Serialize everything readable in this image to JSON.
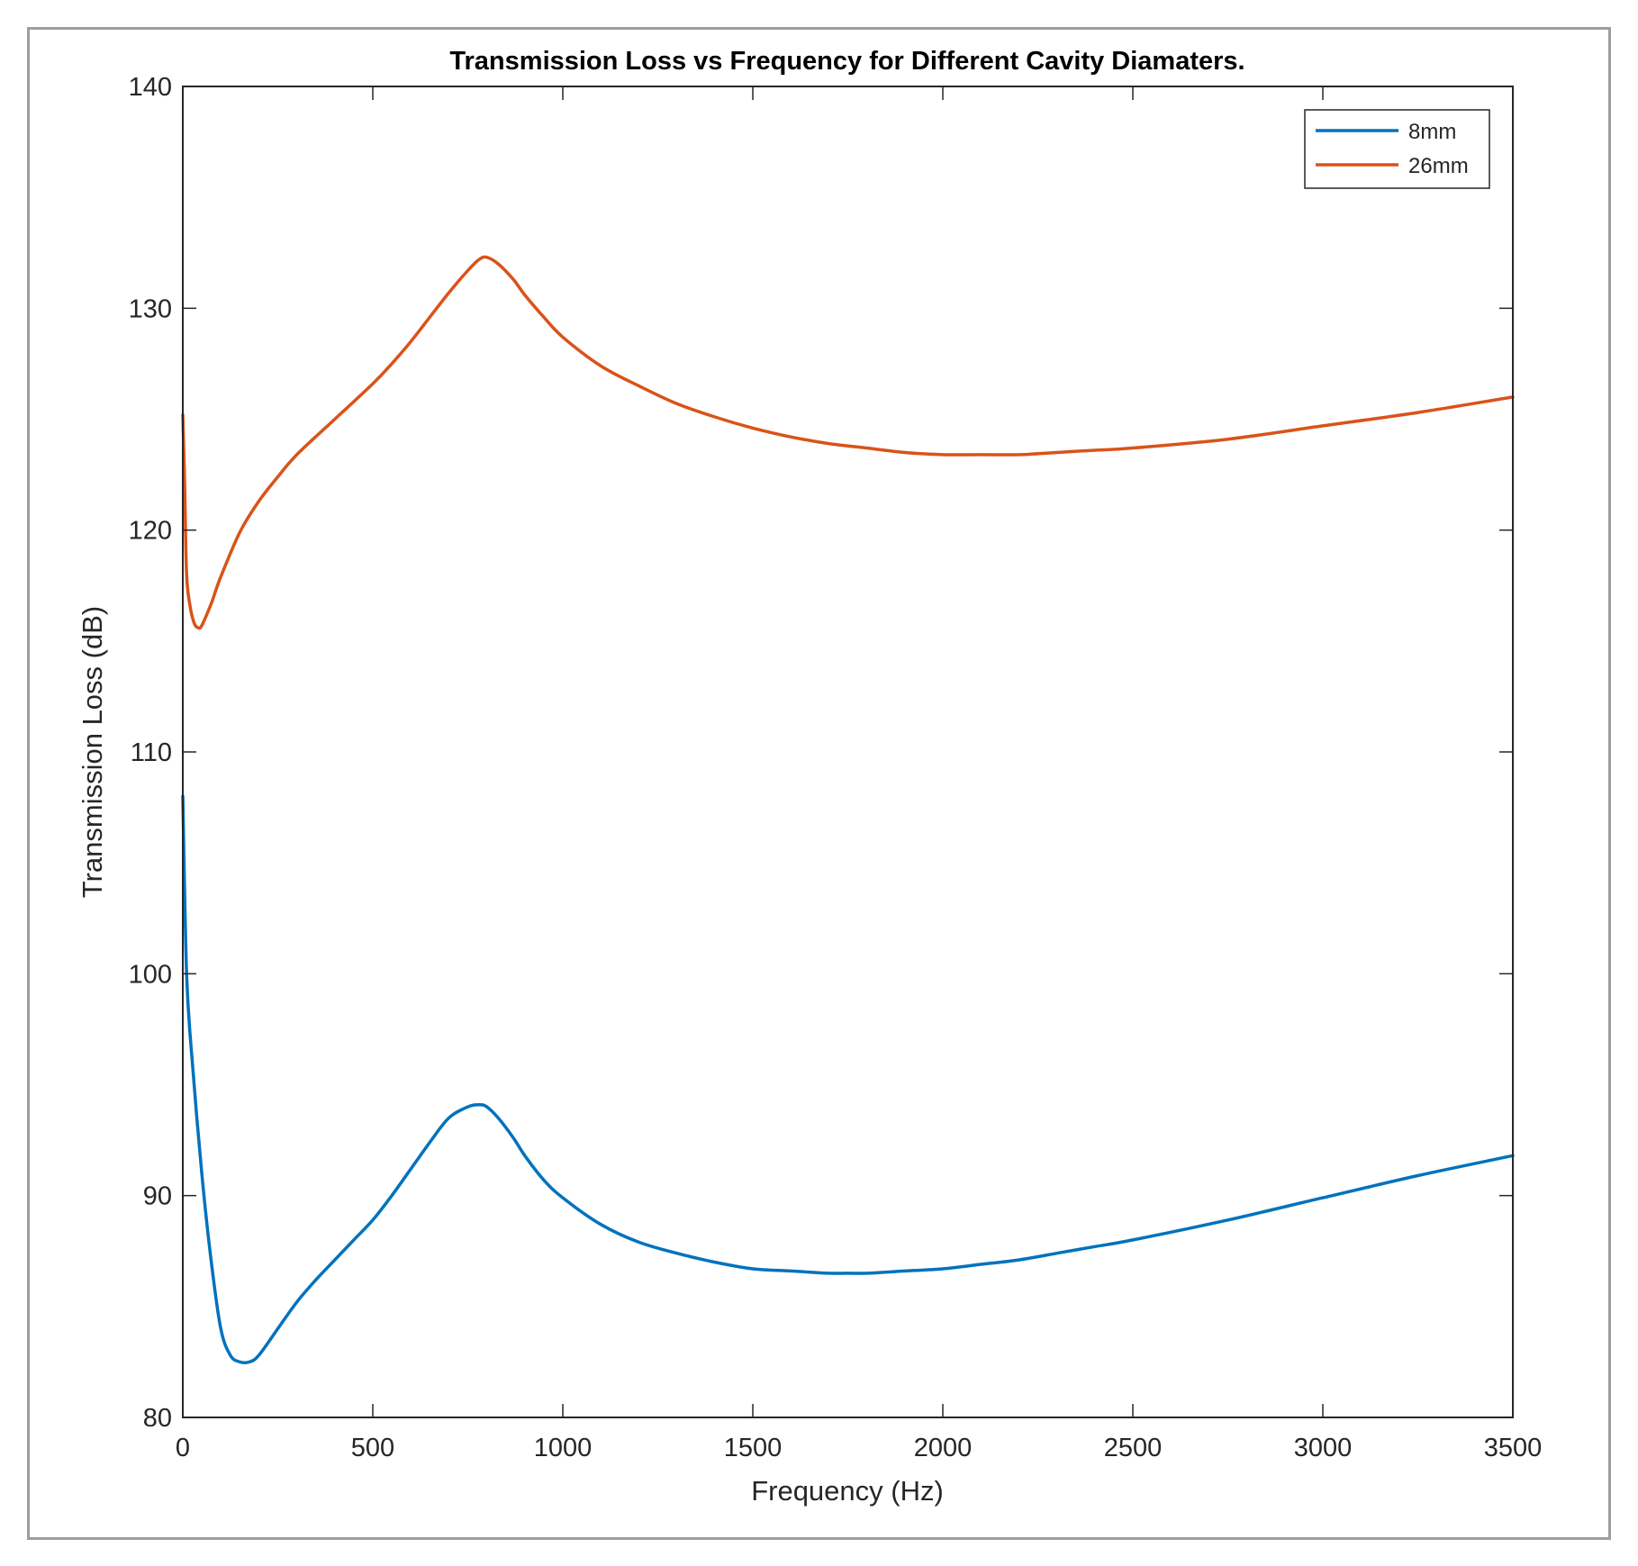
{
  "chart_data": {
    "type": "line",
    "title": "Transmission Loss vs Frequency for Different Cavity Diamaters.",
    "xlabel": "Frequency (Hz)",
    "ylabel": "Transmission Loss (dB)",
    "xlim": [
      0,
      3500
    ],
    "ylim": [
      80,
      140
    ],
    "xticks": [
      0,
      500,
      1000,
      1500,
      2000,
      2500,
      3000,
      3500
    ],
    "yticks": [
      80,
      90,
      100,
      110,
      120,
      130,
      140
    ],
    "legend_position": "top-right",
    "series": [
      {
        "name": "8mm",
        "color": "#0072BD",
        "x": [
          0,
          10,
          25,
          50,
          75,
          100,
          125,
          150,
          175,
          200,
          250,
          300,
          350,
          400,
          450,
          500,
          550,
          600,
          650,
          700,
          750,
          780,
          800,
          830,
          870,
          900,
          950,
          1000,
          1100,
          1200,
          1300,
          1400,
          1500,
          1600,
          1700,
          1750,
          1800,
          1900,
          2000,
          2100,
          2200,
          2300,
          2400,
          2500,
          2750,
          3000,
          3250,
          3500
        ],
        "values": [
          108,
          100,
          96,
          91,
          87,
          84,
          82.8,
          82.5,
          82.5,
          82.8,
          84,
          85.2,
          86.2,
          87.1,
          88,
          88.9,
          90,
          91.2,
          92.4,
          93.5,
          94,
          94.1,
          94,
          93.5,
          92.6,
          91.8,
          90.7,
          89.9,
          88.7,
          87.9,
          87.4,
          87,
          86.7,
          86.6,
          86.5,
          86.5,
          86.5,
          86.6,
          86.7,
          86.9,
          87.1,
          87.4,
          87.7,
          88,
          88.9,
          89.9,
          90.9,
          91.8
        ]
      },
      {
        "name": "26mm",
        "color": "#D95319",
        "x": [
          0,
          5,
          10,
          20,
          30,
          40,
          50,
          75,
          100,
          150,
          200,
          250,
          300,
          400,
          500,
          550,
          600,
          650,
          700,
          750,
          780,
          800,
          830,
          870,
          900,
          950,
          1000,
          1100,
          1200,
          1300,
          1400,
          1500,
          1600,
          1700,
          1800,
          1900,
          2000,
          2100,
          2200,
          2300,
          2400,
          2500,
          2750,
          3000,
          3250,
          3500
        ],
        "values": [
          125.2,
          122,
          118,
          116.5,
          115.8,
          115.6,
          115.7,
          116.7,
          117.9,
          119.9,
          121.3,
          122.4,
          123.4,
          125,
          126.6,
          127.5,
          128.5,
          129.6,
          130.7,
          131.7,
          132.2,
          132.3,
          132,
          131.3,
          130.6,
          129.6,
          128.7,
          127.4,
          126.5,
          125.7,
          125.1,
          124.6,
          124.2,
          123.9,
          123.7,
          123.5,
          123.4,
          123.4,
          123.4,
          123.5,
          123.6,
          123.7,
          124.1,
          124.7,
          125.3,
          126
        ]
      }
    ]
  }
}
